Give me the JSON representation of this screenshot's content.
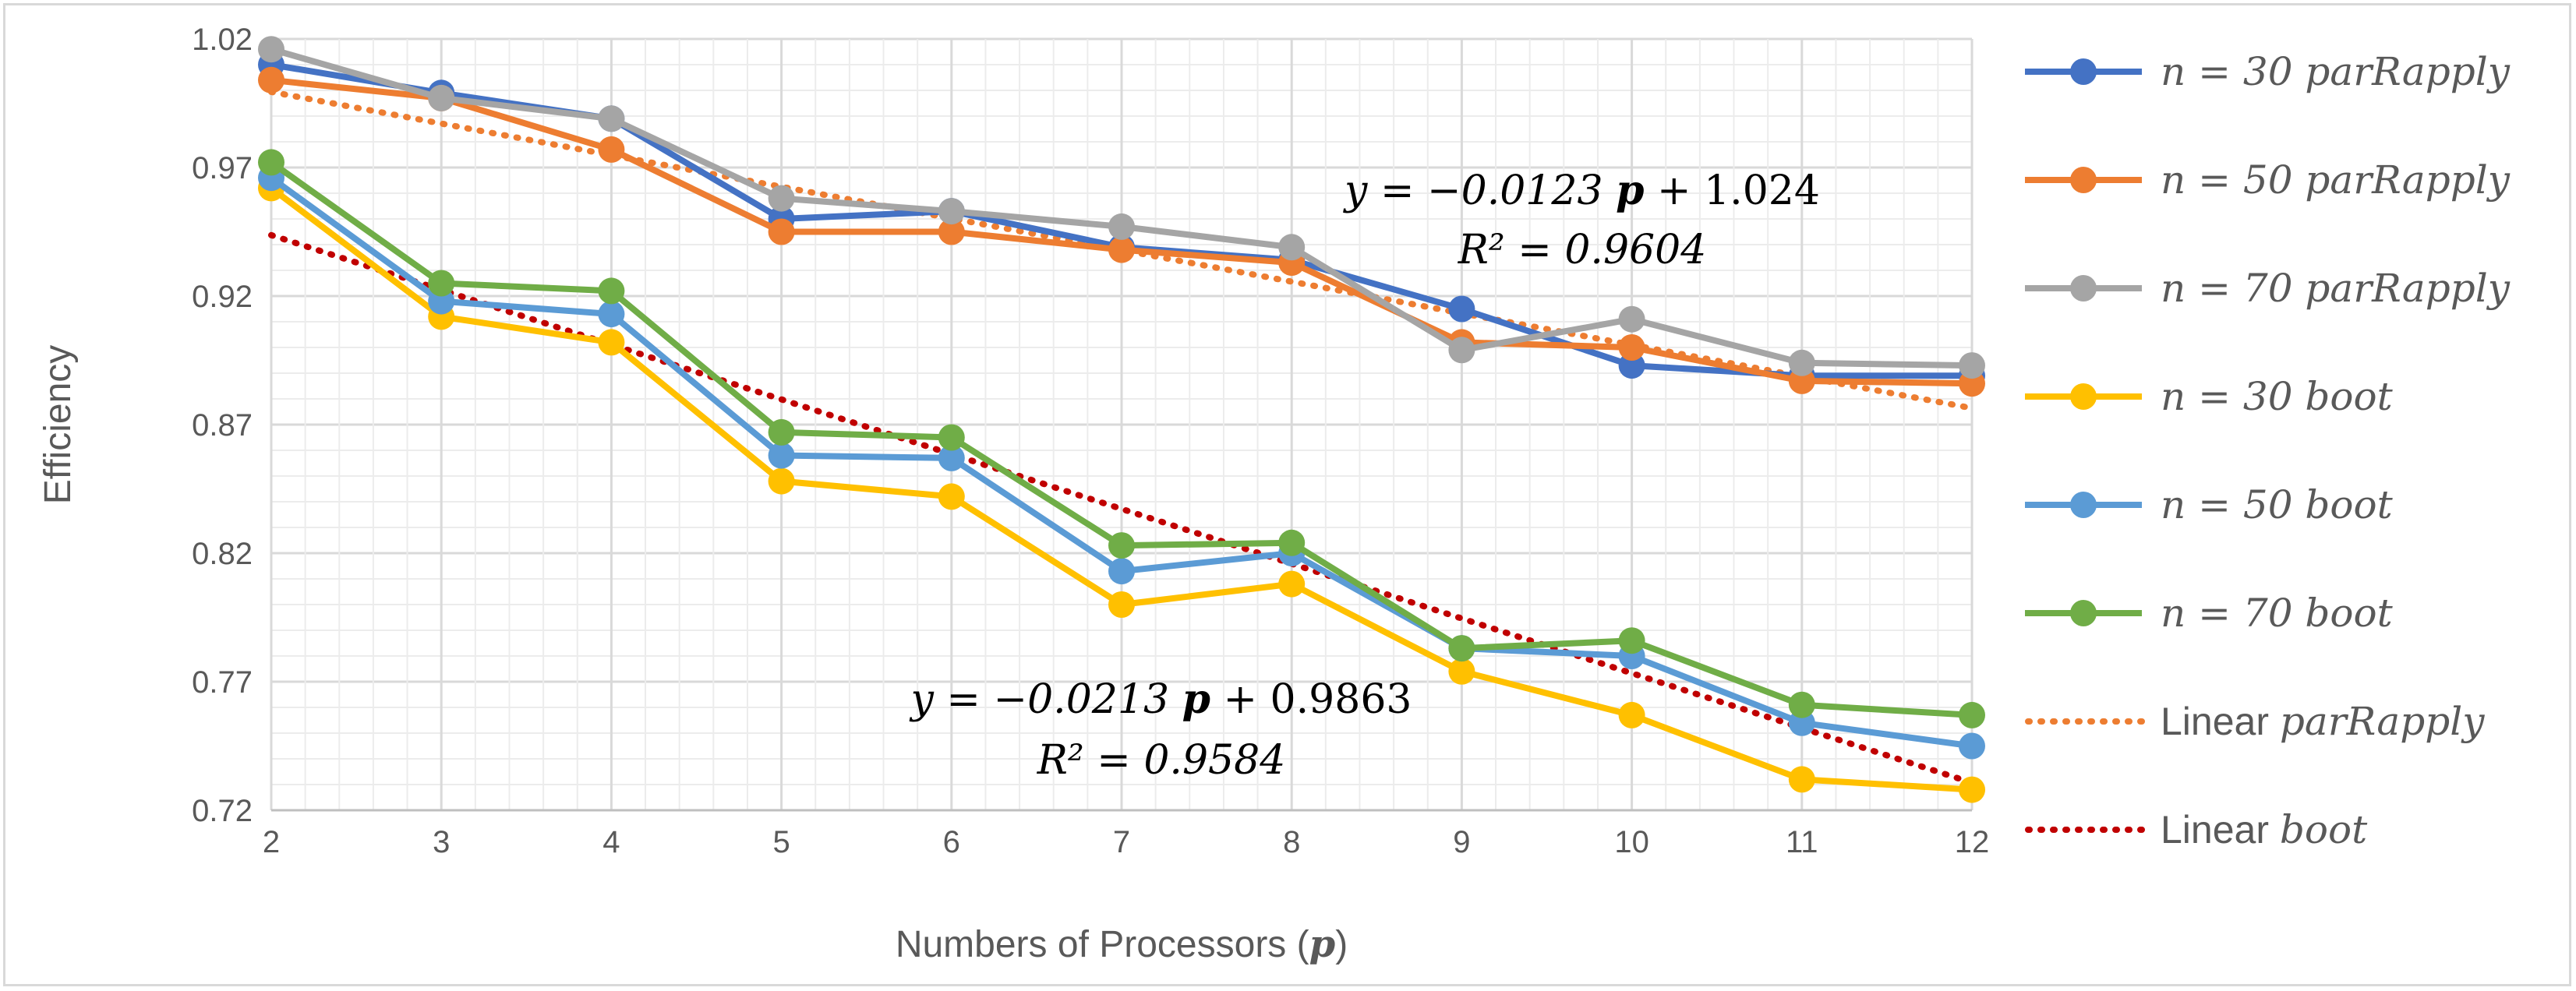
{
  "chart_data": {
    "type": "line",
    "xlabel": "Numbers of Processors",
    "xlabel_symbol": "p",
    "ylabel": "Efficiency",
    "categories": [
      2,
      3,
      4,
      5,
      6,
      7,
      8,
      9,
      10,
      11,
      12
    ],
    "ylim": [
      0.72,
      1.02
    ],
    "yticks": [
      "0.72",
      "0.77",
      "0.82",
      "0.87",
      "0.92",
      "0.97",
      "1.02"
    ],
    "grid": true,
    "legend_position": "right",
    "series": [
      {
        "n": "n = 30",
        "method": "parRapply",
        "color": "#4472c4",
        "values": [
          1.01,
          0.999,
          0.989,
          0.95,
          0.953,
          0.939,
          0.934,
          0.915,
          0.893,
          0.889,
          0.889
        ]
      },
      {
        "n": "n = 50",
        "method": "parRapply",
        "color": "#ed7d31",
        "values": [
          1.004,
          0.997,
          0.977,
          0.945,
          0.945,
          0.938,
          0.933,
          0.902,
          0.9,
          0.887,
          0.886
        ]
      },
      {
        "n": "n = 70",
        "method": "parRapply",
        "color": "#a5a5a5",
        "values": [
          1.016,
          0.997,
          0.989,
          0.958,
          0.953,
          0.947,
          0.939,
          0.899,
          0.911,
          0.894,
          0.893
        ]
      },
      {
        "n": "n = 30",
        "method": "boot",
        "color": "#ffc000",
        "values": [
          0.962,
          0.912,
          0.902,
          0.848,
          0.842,
          0.8,
          0.808,
          0.774,
          0.757,
          0.732,
          0.728
        ]
      },
      {
        "n": "n = 50",
        "method": "boot",
        "color": "#5b9bd5",
        "values": [
          0.966,
          0.918,
          0.913,
          0.858,
          0.857,
          0.813,
          0.82,
          0.783,
          0.78,
          0.754,
          0.745
        ]
      },
      {
        "n": "n = 70",
        "method": "boot",
        "color": "#70ad47",
        "values": [
          0.972,
          0.925,
          0.922,
          0.867,
          0.865,
          0.823,
          0.824,
          0.783,
          0.786,
          0.761,
          0.757
        ]
      }
    ],
    "trendlines": [
      {
        "label": "Linear",
        "method": "parRapply",
        "color": "#ed7d31",
        "slope": -0.0123,
        "intercept": 1.024,
        "r2": "0.9604",
        "equation": "y = −0.0123 p + 1.024",
        "r2_text": "R² = 0.9604"
      },
      {
        "label": "Linear",
        "method": "boot",
        "color": "#c00000",
        "slope": -0.0213,
        "intercept": 0.9863,
        "r2": "0.9584",
        "equation": "y = −0.0213 p + 0.9863",
        "r2_text": "R² = 0.9584"
      }
    ]
  }
}
